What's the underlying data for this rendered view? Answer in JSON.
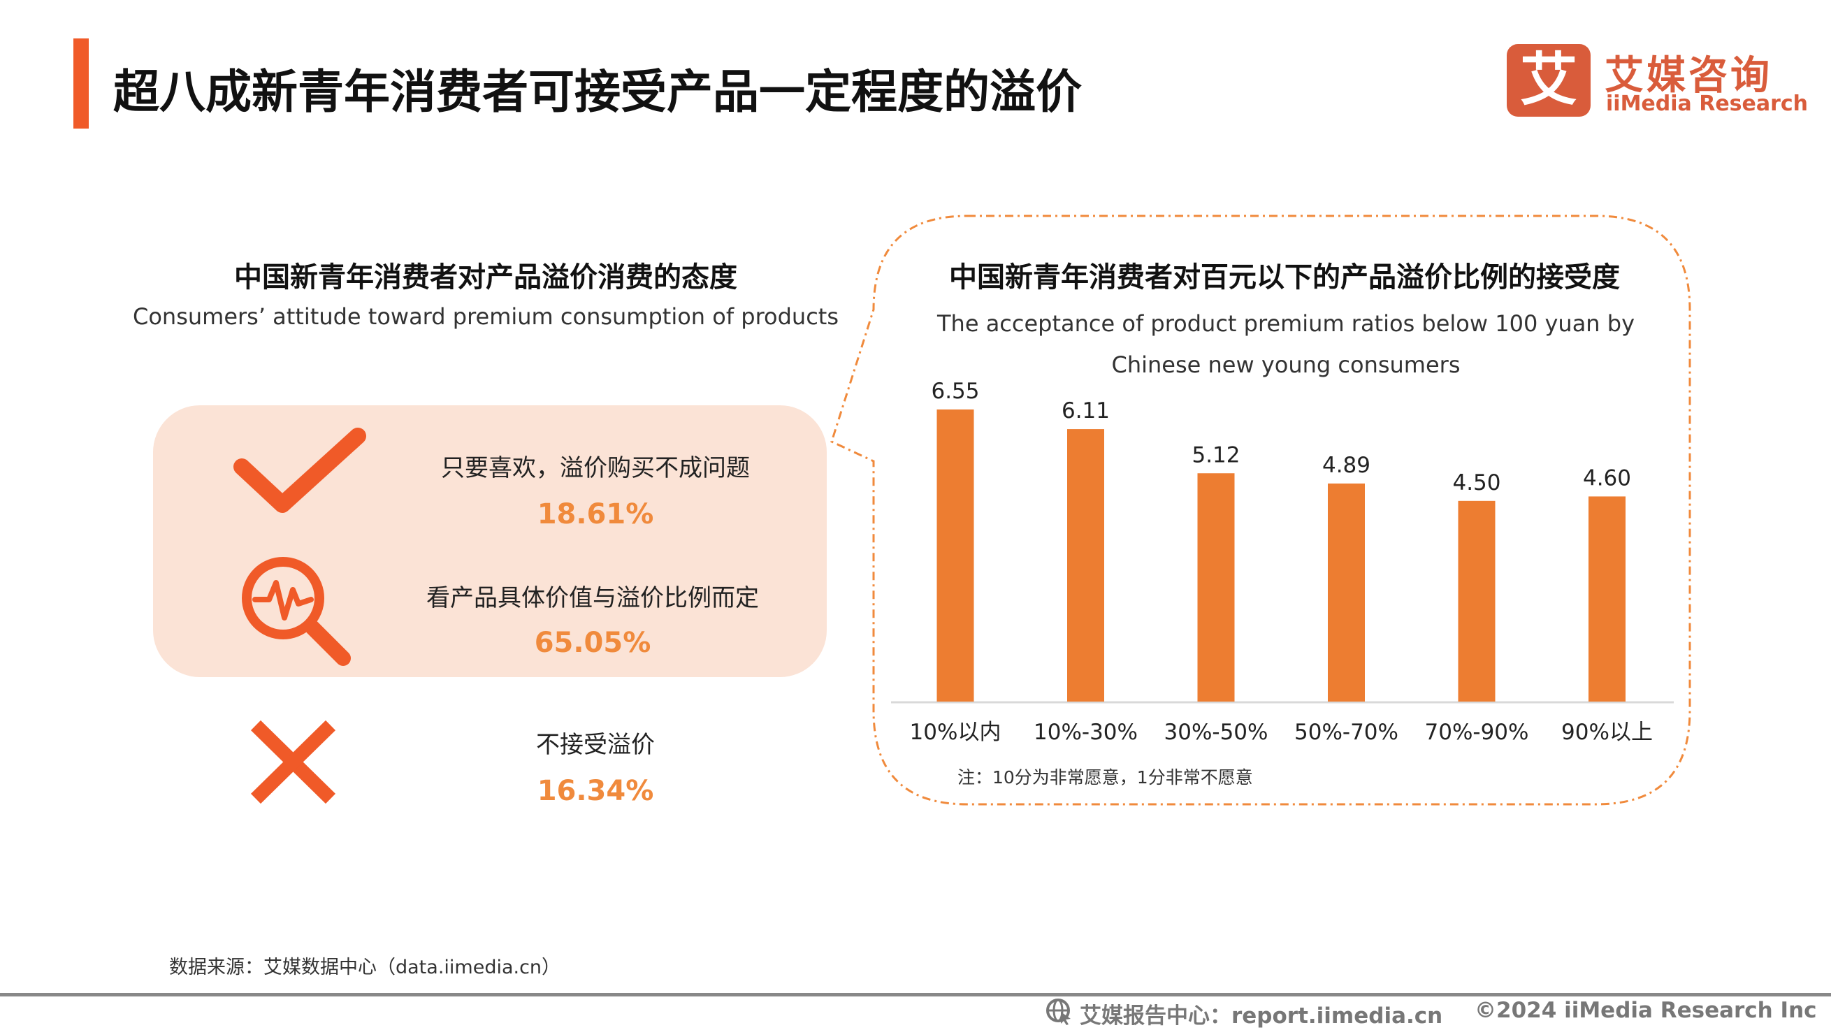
{
  "header": {
    "title": "超八成新青年消费者可接受产品一定程度的溢价"
  },
  "logo": {
    "mark": "艾",
    "cn": "艾媒咨询",
    "en": "iiMedia Research"
  },
  "left": {
    "title_cn": "中国新青年消费者对产品溢价消费的态度",
    "title_en": "Consumers’  attitude toward premium consumption of products",
    "items": [
      {
        "label": "只要喜欢，溢价购买不成问题",
        "value": "18.61%",
        "icon": "checkmark-icon"
      },
      {
        "label": "看产品具体价值与溢价比例而定",
        "value": "65.05%",
        "icon": "magnifier-pulse-icon"
      },
      {
        "label": "不接受溢价",
        "value": "16.34%",
        "icon": "cross-icon"
      }
    ]
  },
  "chart_data": {
    "type": "bar",
    "title": "中国新青年消费者对百元以下的产品溢价比例的接受度",
    "subtitle": "The acceptance of product premium ratios below 100 yuan by Chinese new young consumers",
    "categories": [
      "10%以内",
      "10%-30%",
      "30%-50%",
      "50%-70%",
      "70%-90%",
      "90%以上"
    ],
    "values": [
      6.55,
      6.11,
      5.12,
      4.89,
      4.5,
      4.6
    ],
    "value_labels": [
      "6.55",
      "6.11",
      "5.12",
      "4.89",
      "4.50",
      "4.60"
    ],
    "ylim": [
      0,
      6.55
    ],
    "grid": false,
    "bar_color": "#ed7d31",
    "note": "注：10分为非常愿意，1分非常不愿意"
  },
  "footer": {
    "source": "数据来源：艾媒数据中心（data.iimedia.cn）",
    "report": "艾媒报告中心：report.iimedia.cn",
    "copyright": "©2024  iiMedia Research  Inc"
  },
  "colors": {
    "accent": "#f05a28",
    "orange": "#f08a3c",
    "pink": "#fbe3d6",
    "icon": "#f05a28"
  }
}
